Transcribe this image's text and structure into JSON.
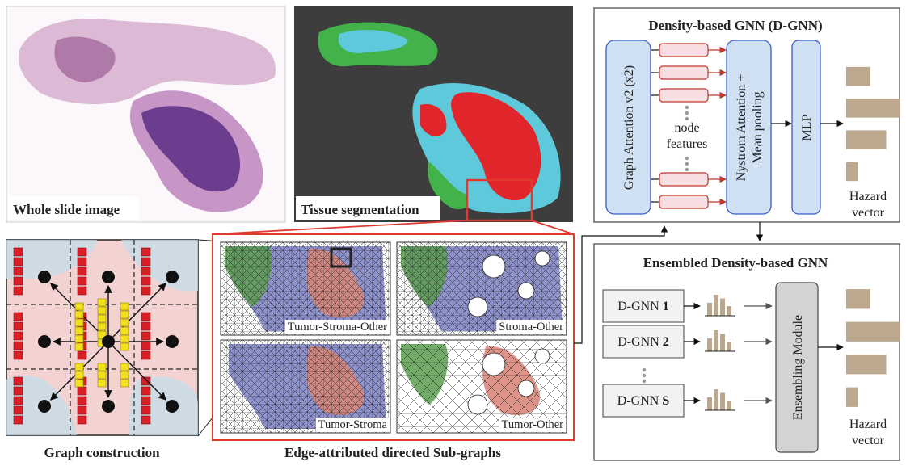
{
  "panels": {
    "wsi_label": "Whole slide image",
    "seg_label": "Tissue segmentation",
    "graph_construction_label": "Graph construction",
    "subgraphs_label": "Edge-attributed directed Sub-graphs"
  },
  "subgraphs": [
    {
      "label": "Tumor-Stroma-Other"
    },
    {
      "label": "Stroma-Other"
    },
    {
      "label": "Tumor-Stroma"
    },
    {
      "label": "Tumor-Other"
    }
  ],
  "dgnn": {
    "title": "Density-based GNN (D-GNN)",
    "gat_label": "Graph Attention v2 (x2)",
    "node_features_line1": "node",
    "node_features_line2": "features",
    "pool_line1": "Nystrom Attention +",
    "pool_line2": "Mean pooling",
    "mlp_label": "MLP",
    "hazard_line1": "Hazard",
    "hazard_line2": "vector",
    "hazard_values": [
      0.45,
      1.0,
      0.75,
      0.22
    ]
  },
  "ensemble": {
    "title": "Ensembled Density-based GNN",
    "models": [
      {
        "prefix": "D-GNN ",
        "index": "1"
      },
      {
        "prefix": "D-GNN ",
        "index": "2"
      },
      {
        "prefix": "D-GNN ",
        "index": "S"
      }
    ],
    "module_label": "Ensembling Module",
    "hazard_line1": "Hazard",
    "hazard_line2": "vector",
    "hazard_values": [
      0.45,
      1.0,
      0.75,
      0.22
    ]
  },
  "colors": {
    "tumor": "#d9877a",
    "stroma": "#7a7fc4",
    "other": "#5a9e4e",
    "seg_tumor": "#e0262b",
    "seg_stroma": "#5fc9dc",
    "seg_other": "#44b24a",
    "highlight_red": "#e03a2f",
    "node_red": "#d91e26",
    "edge_yellow": "#f2e01c",
    "gnn_blue": "#cfe0f3",
    "feature_pink": "#f8dde3",
    "hazard_tan": "#bba88e",
    "module_gray": "#d3d3d3"
  }
}
